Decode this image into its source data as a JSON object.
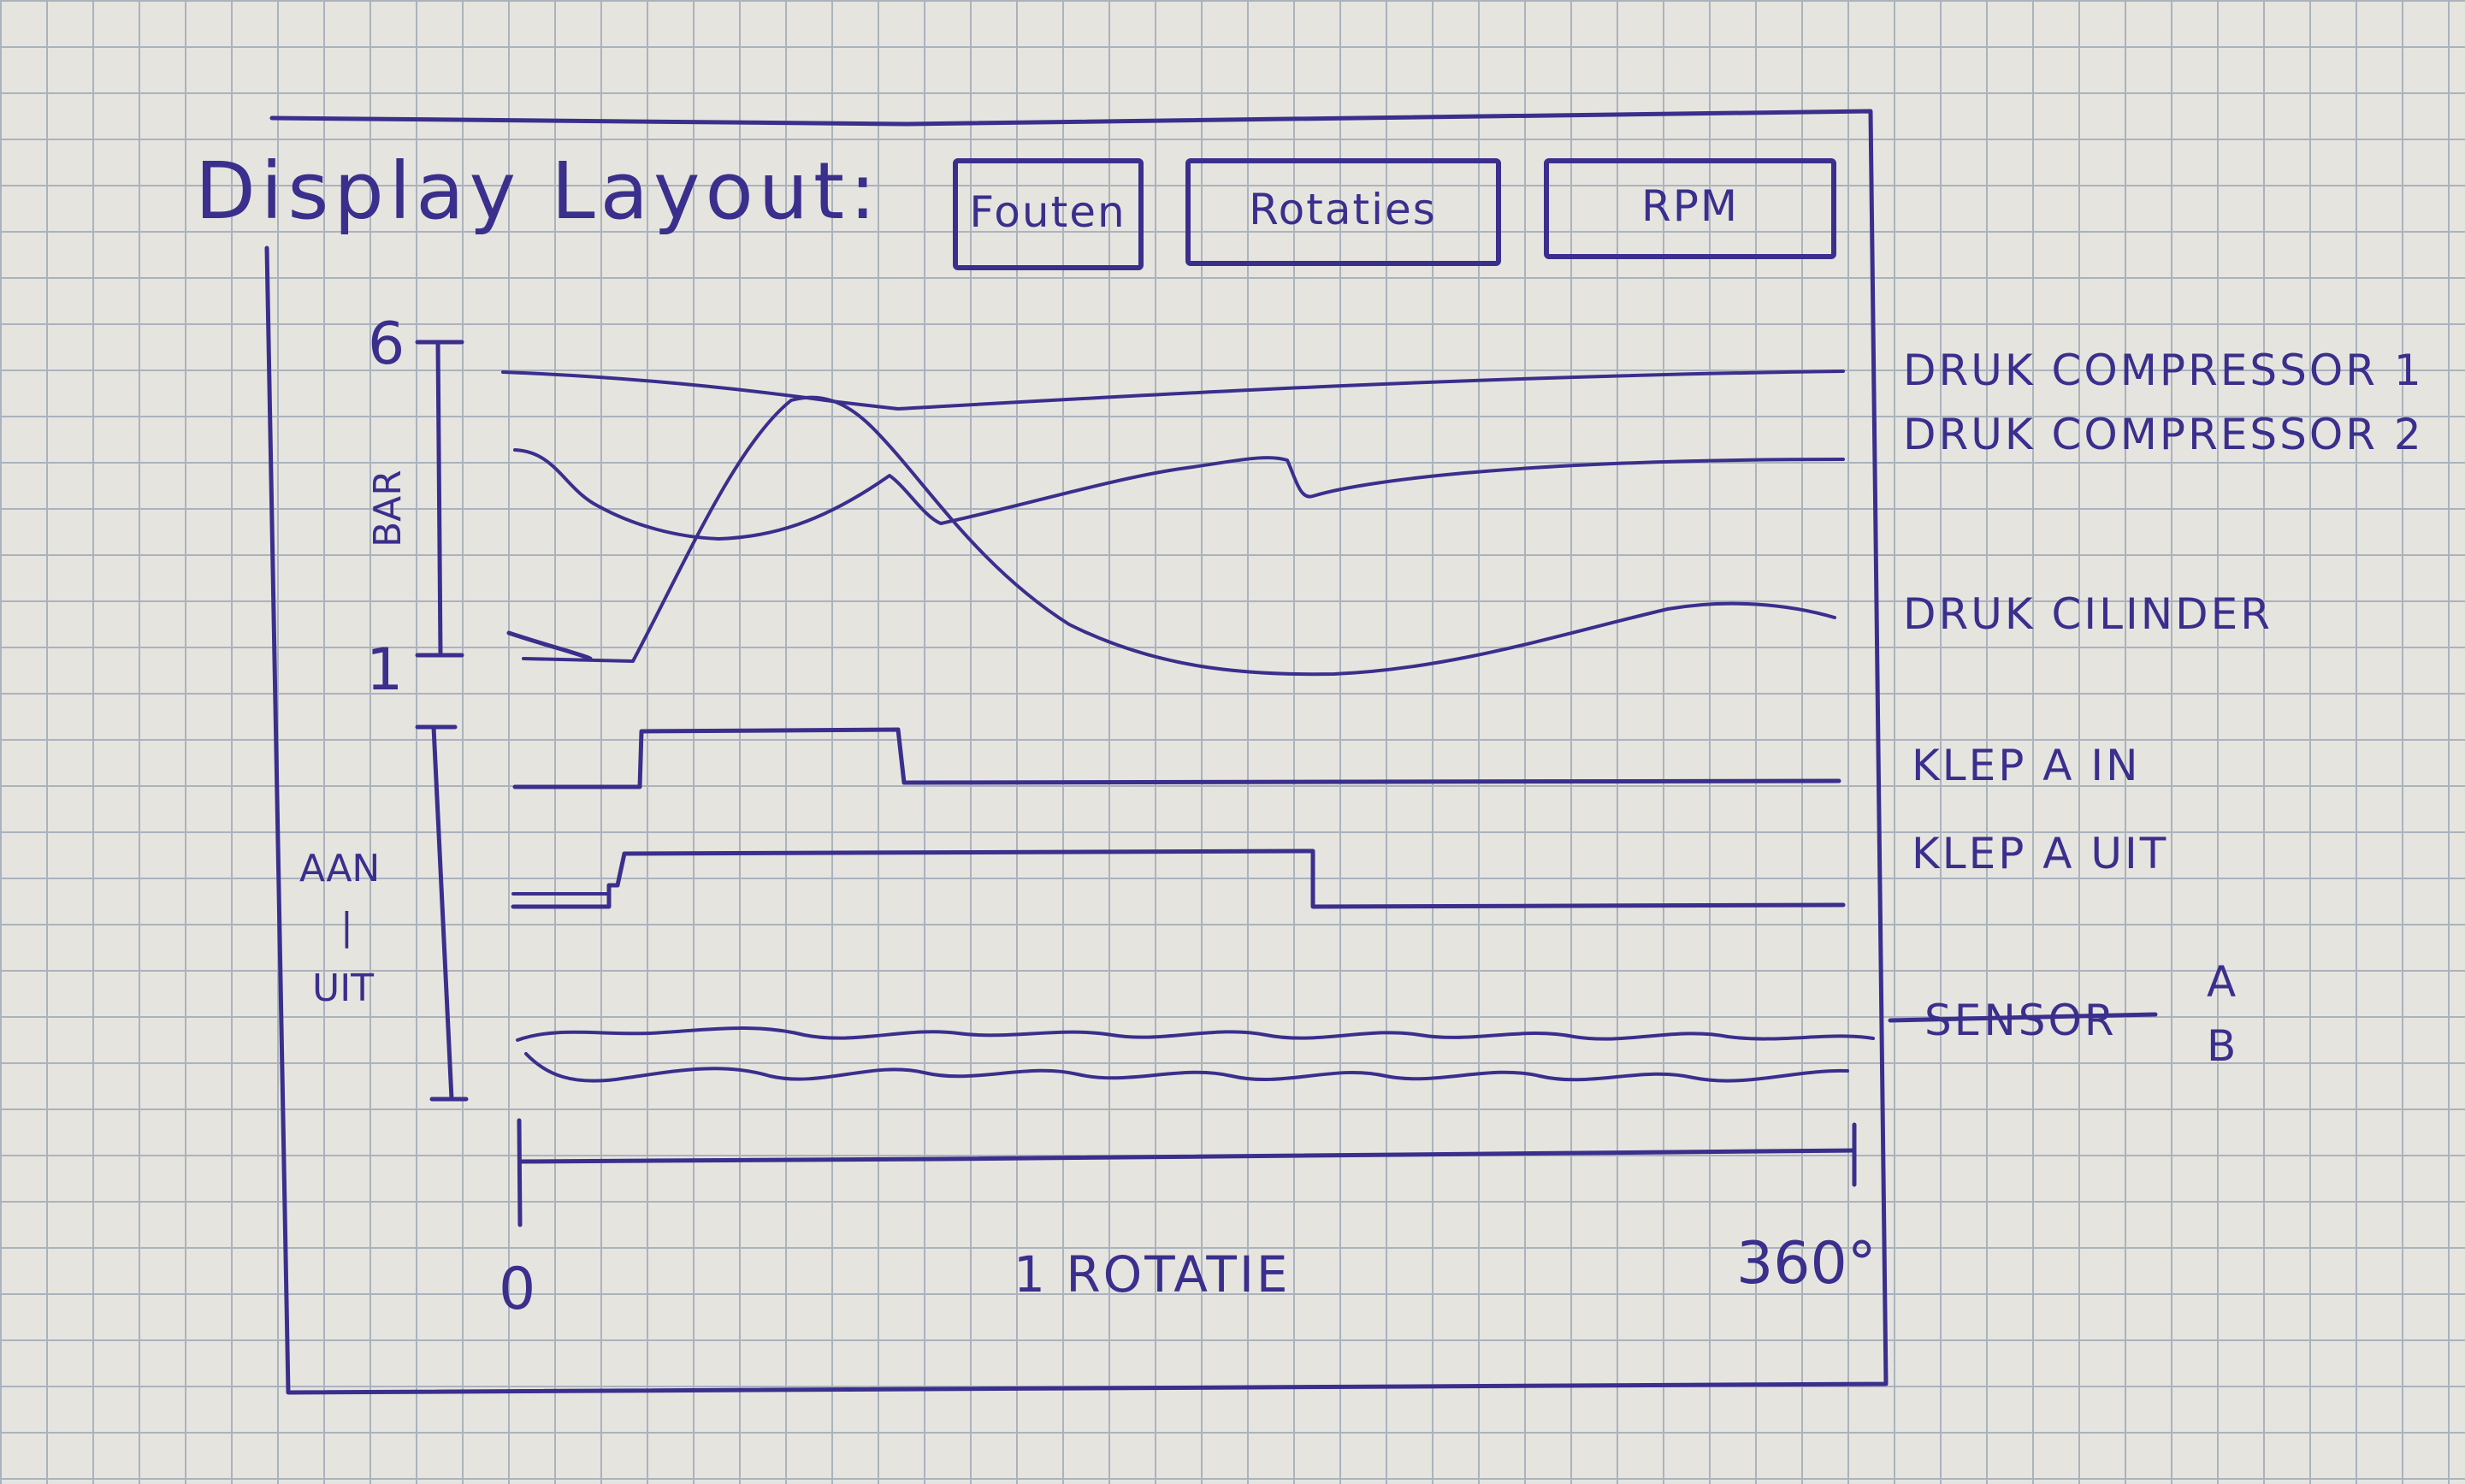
{
  "title": "Display Layout:",
  "toolbar": {
    "buttons": [
      {
        "label": "Fouten"
      },
      {
        "label": "Rotaties"
      },
      {
        "label": "RPM"
      }
    ]
  },
  "pressure_panel": {
    "axis_label": "BAR",
    "axis_max": "6",
    "axis_min": "1",
    "series": [
      {
        "label": "DRUK COMPRESSOR 1"
      },
      {
        "label": "DRUK COMPRESSOR 2"
      },
      {
        "label": "DRUK CILINDER"
      }
    ]
  },
  "valve_panel": {
    "axis_label_top": "AAN",
    "axis_label_sep": "|",
    "axis_label_bottom": "UIT",
    "series": [
      {
        "label": "KLEP A IN"
      },
      {
        "label": "KLEP A UIT"
      }
    ]
  },
  "sensor": {
    "label": "SENSOR",
    "label_strikethrough": true,
    "fraction_top": "A",
    "fraction_bottom": "B"
  },
  "x_axis": {
    "start": "0",
    "end": "360°",
    "caption": "1 ROTATIE"
  },
  "colors": {
    "ink": "#3a2f8c",
    "paper": "#e6e4df",
    "grid": "#aab3bd"
  }
}
